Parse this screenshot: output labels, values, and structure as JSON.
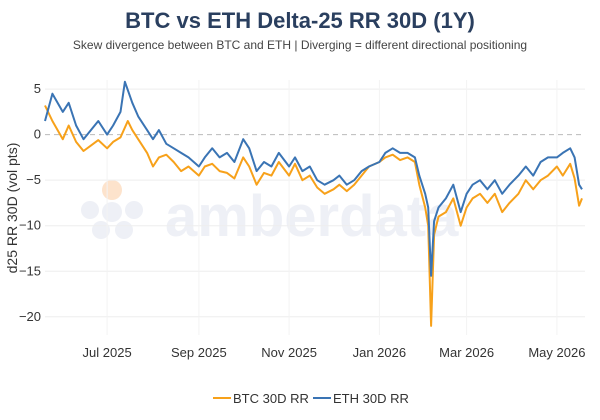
{
  "chart_data": {
    "type": "line",
    "title": "BTC vs ETH Delta-25 RR 30D (1Y)",
    "subtitle": "Skew divergence between BTC and ETH | Diverging = different directional positioning",
    "ylabel": "d25 RR 30D (vol pts)",
    "xlabel": "",
    "xlim": [
      "2025-05-20",
      "2026-05-20"
    ],
    "ylim": [
      -22,
      6
    ],
    "y_ticks": [
      5,
      0,
      -5,
      -10,
      -15,
      -20
    ],
    "y_tick_labels": [
      "5",
      "0",
      "−5",
      "−10",
      "−15",
      "−20"
    ],
    "x_ticks": [
      "2025-07-01",
      "2025-09-01",
      "2025-11-01",
      "2026-01-01",
      "2026-03-01",
      "2026-05-01"
    ],
    "x_tick_labels": [
      "Jul 2025",
      "Sep 2025",
      "Nov 2025",
      "Jan 2026",
      "Mar 2026",
      "May 2026"
    ],
    "zero_line": {
      "y": 0,
      "style": "dashed",
      "color": "#bbbbbb"
    },
    "grid": true,
    "legend_placement": "bottom-center",
    "watermark": "amberdata",
    "series": [
      {
        "name": "BTC 30D RR",
        "color": "#f7a11a",
        "points": [
          [
            "2025-05-20",
            3.2
          ],
          [
            "2025-05-25",
            1.5
          ],
          [
            "2025-06-01",
            -0.5
          ],
          [
            "2025-06-05",
            1.0
          ],
          [
            "2025-06-10",
            -0.8
          ],
          [
            "2025-06-15",
            -1.8
          ],
          [
            "2025-06-20",
            -1.2
          ],
          [
            "2025-06-25",
            -0.6
          ],
          [
            "2025-07-01",
            -1.5
          ],
          [
            "2025-07-05",
            -0.8
          ],
          [
            "2025-07-10",
            -0.3
          ],
          [
            "2025-07-15",
            1.5
          ],
          [
            "2025-07-18",
            0.5
          ],
          [
            "2025-07-22",
            -0.5
          ],
          [
            "2025-07-28",
            -2.0
          ],
          [
            "2025-08-01",
            -3.5
          ],
          [
            "2025-08-05",
            -2.5
          ],
          [
            "2025-08-10",
            -2.2
          ],
          [
            "2025-08-15",
            -3.0
          ],
          [
            "2025-08-20",
            -4.0
          ],
          [
            "2025-08-25",
            -3.5
          ],
          [
            "2025-09-01",
            -4.5
          ],
          [
            "2025-09-05",
            -3.5
          ],
          [
            "2025-09-10",
            -3.2
          ],
          [
            "2025-09-15",
            -4.0
          ],
          [
            "2025-09-20",
            -4.2
          ],
          [
            "2025-09-25",
            -4.8
          ],
          [
            "2025-10-01",
            -2.5
          ],
          [
            "2025-10-05",
            -3.5
          ],
          [
            "2025-10-10",
            -5.5
          ],
          [
            "2025-10-15",
            -4.2
          ],
          [
            "2025-10-20",
            -4.5
          ],
          [
            "2025-10-25",
            -3.0
          ],
          [
            "2025-11-01",
            -4.5
          ],
          [
            "2025-11-05",
            -3.2
          ],
          [
            "2025-11-10",
            -5.0
          ],
          [
            "2025-11-15",
            -4.5
          ],
          [
            "2025-11-20",
            -5.8
          ],
          [
            "2025-11-25",
            -6.5
          ],
          [
            "2025-12-01",
            -6.0
          ],
          [
            "2025-12-05",
            -5.5
          ],
          [
            "2025-12-10",
            -6.2
          ],
          [
            "2025-12-15",
            -5.5
          ],
          [
            "2025-12-20",
            -4.5
          ],
          [
            "2025-12-25",
            -3.5
          ],
          [
            "2026-01-01",
            -3.0
          ],
          [
            "2026-01-05",
            -2.5
          ],
          [
            "2026-01-10",
            -2.2
          ],
          [
            "2026-01-15",
            -2.8
          ],
          [
            "2026-01-20",
            -2.5
          ],
          [
            "2026-01-25",
            -3.0
          ],
          [
            "2026-01-28",
            -5.5
          ],
          [
            "2026-02-01",
            -8.0
          ],
          [
            "2026-02-03",
            -10.0
          ],
          [
            "2026-02-05",
            -21.0
          ],
          [
            "2026-02-07",
            -11.0
          ],
          [
            "2026-02-10",
            -9.0
          ],
          [
            "2026-02-15",
            -8.5
          ],
          [
            "2026-02-20",
            -7.0
          ],
          [
            "2026-02-25",
            -10.0
          ],
          [
            "2026-03-01",
            -8.0
          ],
          [
            "2026-03-05",
            -7.0
          ],
          [
            "2026-03-10",
            -6.5
          ],
          [
            "2026-03-15",
            -7.5
          ],
          [
            "2026-03-20",
            -6.5
          ],
          [
            "2026-03-25",
            -8.5
          ],
          [
            "2026-03-30",
            -7.5
          ],
          [
            "2026-04-05",
            -6.5
          ],
          [
            "2026-04-10",
            -5.0
          ],
          [
            "2026-04-15",
            -6.0
          ],
          [
            "2026-04-20",
            -5.0
          ],
          [
            "2026-04-25",
            -4.5
          ],
          [
            "2026-05-01",
            -3.5
          ],
          [
            "2026-05-05",
            -4.5
          ],
          [
            "2026-05-10",
            -3.2
          ],
          [
            "2026-05-13",
            -4.8
          ],
          [
            "2026-05-16",
            -7.8
          ],
          [
            "2026-05-18",
            -7.0
          ]
        ]
      },
      {
        "name": "ETH 30D RR",
        "color": "#3a74b4",
        "points": [
          [
            "2025-05-20",
            1.5
          ],
          [
            "2025-05-25",
            4.5
          ],
          [
            "2025-06-01",
            2.5
          ],
          [
            "2025-06-05",
            3.5
          ],
          [
            "2025-06-10",
            1.0
          ],
          [
            "2025-06-15",
            -0.5
          ],
          [
            "2025-06-20",
            0.5
          ],
          [
            "2025-06-25",
            1.5
          ],
          [
            "2025-07-01",
            0.0
          ],
          [
            "2025-07-05",
            1.0
          ],
          [
            "2025-07-10",
            2.5
          ],
          [
            "2025-07-13",
            5.8
          ],
          [
            "2025-07-18",
            3.5
          ],
          [
            "2025-07-22",
            2.0
          ],
          [
            "2025-07-28",
            0.5
          ],
          [
            "2025-08-01",
            -0.5
          ],
          [
            "2025-08-05",
            0.5
          ],
          [
            "2025-08-10",
            -1.0
          ],
          [
            "2025-08-15",
            -1.5
          ],
          [
            "2025-08-20",
            -2.0
          ],
          [
            "2025-08-25",
            -2.5
          ],
          [
            "2025-09-01",
            -3.5
          ],
          [
            "2025-09-05",
            -2.5
          ],
          [
            "2025-09-10",
            -1.5
          ],
          [
            "2025-09-15",
            -2.5
          ],
          [
            "2025-09-20",
            -2.0
          ],
          [
            "2025-09-25",
            -3.0
          ],
          [
            "2025-10-01",
            -0.5
          ],
          [
            "2025-10-05",
            -1.5
          ],
          [
            "2025-10-10",
            -4.0
          ],
          [
            "2025-10-15",
            -3.0
          ],
          [
            "2025-10-20",
            -3.5
          ],
          [
            "2025-10-25",
            -2.0
          ],
          [
            "2025-11-01",
            -3.5
          ],
          [
            "2025-11-05",
            -2.5
          ],
          [
            "2025-11-10",
            -4.0
          ],
          [
            "2025-11-15",
            -3.5
          ],
          [
            "2025-11-20",
            -5.0
          ],
          [
            "2025-11-25",
            -5.5
          ],
          [
            "2025-12-01",
            -5.0
          ],
          [
            "2025-12-05",
            -4.5
          ],
          [
            "2025-12-10",
            -5.5
          ],
          [
            "2025-12-15",
            -5.0
          ],
          [
            "2025-12-20",
            -4.0
          ],
          [
            "2025-12-25",
            -3.5
          ],
          [
            "2026-01-01",
            -3.0
          ],
          [
            "2026-01-05",
            -2.0
          ],
          [
            "2026-01-10",
            -1.5
          ],
          [
            "2026-01-15",
            -2.0
          ],
          [
            "2026-01-20",
            -2.0
          ],
          [
            "2026-01-25",
            -2.5
          ],
          [
            "2026-01-28",
            -4.5
          ],
          [
            "2026-02-01",
            -6.5
          ],
          [
            "2026-02-03",
            -8.0
          ],
          [
            "2026-02-05",
            -15.5
          ],
          [
            "2026-02-07",
            -9.5
          ],
          [
            "2026-02-10",
            -8.0
          ],
          [
            "2026-02-15",
            -7.0
          ],
          [
            "2026-02-20",
            -5.5
          ],
          [
            "2026-02-25",
            -8.5
          ],
          [
            "2026-03-01",
            -6.5
          ],
          [
            "2026-03-05",
            -5.5
          ],
          [
            "2026-03-10",
            -5.0
          ],
          [
            "2026-03-15",
            -6.0
          ],
          [
            "2026-03-20",
            -5.0
          ],
          [
            "2026-03-25",
            -6.5
          ],
          [
            "2026-03-30",
            -5.5
          ],
          [
            "2026-04-05",
            -4.5
          ],
          [
            "2026-04-10",
            -3.5
          ],
          [
            "2026-04-15",
            -4.5
          ],
          [
            "2026-04-20",
            -3.0
          ],
          [
            "2026-04-25",
            -2.5
          ],
          [
            "2026-05-01",
            -2.5
          ],
          [
            "2026-05-05",
            -2.0
          ],
          [
            "2026-05-10",
            -1.5
          ],
          [
            "2026-05-13",
            -2.5
          ],
          [
            "2026-05-16",
            -5.5
          ],
          [
            "2026-05-18",
            -6.0
          ]
        ]
      }
    ]
  }
}
